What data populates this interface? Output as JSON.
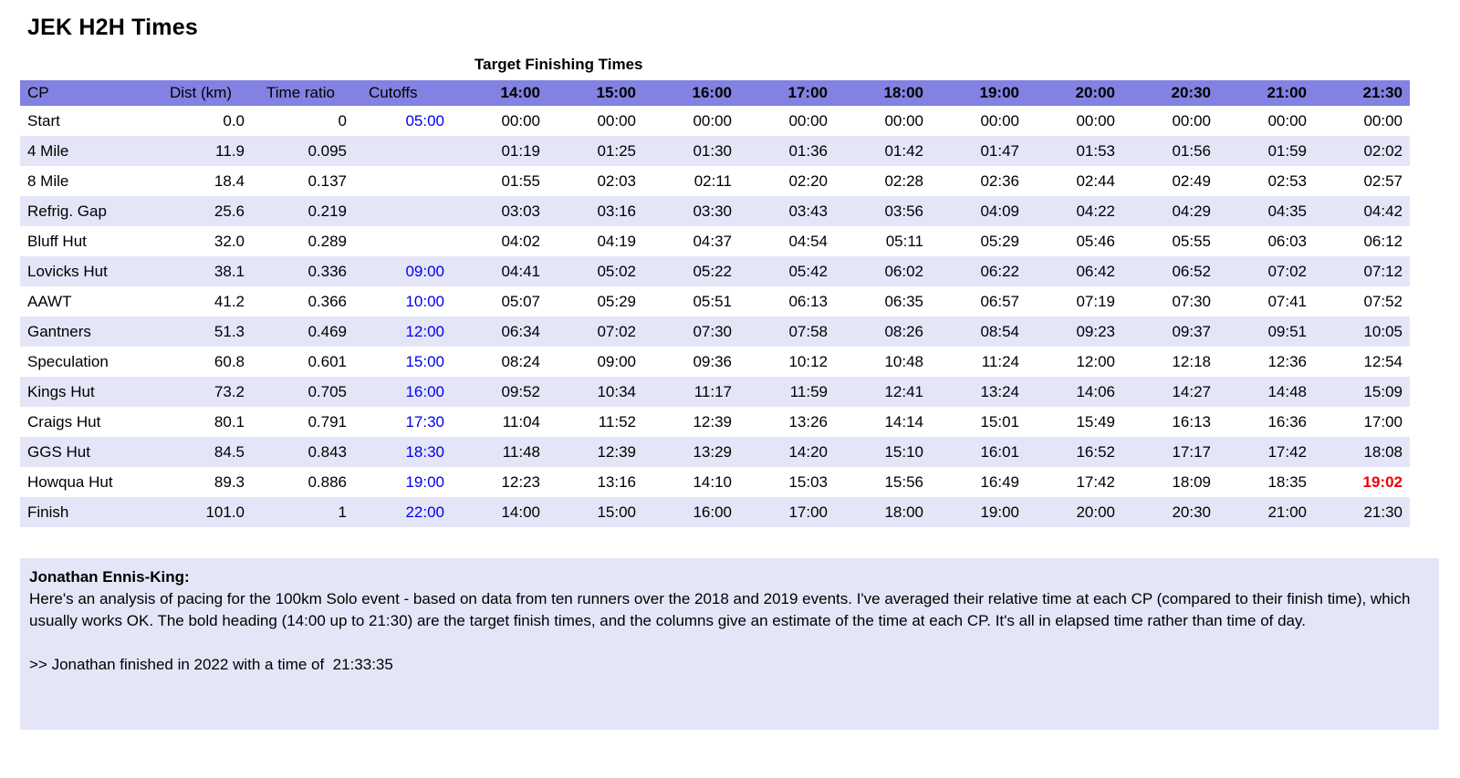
{
  "page": {
    "title": "JEK H2H Times",
    "table_caption": "Target Finishing Times"
  },
  "colors": {
    "header_bg": "#8282e2",
    "stripe": "#e5e5f8",
    "cutoff_blue": "#0000ee",
    "alert_red": "#ee0000"
  },
  "table": {
    "meta_headers": [
      "CP",
      "Dist (km)",
      "Time ratio",
      "Cutoffs"
    ],
    "time_headers": [
      "14:00",
      "15:00",
      "16:00",
      "17:00",
      "18:00",
      "19:00",
      "20:00",
      "20:30",
      "21:00",
      "21:30"
    ],
    "rows": [
      {
        "cp": "Start",
        "dist": "0.0",
        "ratio": "0",
        "cutoff": "05:00",
        "times": [
          "00:00",
          "00:00",
          "00:00",
          "00:00",
          "00:00",
          "00:00",
          "00:00",
          "00:00",
          "00:00",
          "00:00"
        ]
      },
      {
        "cp": "4 Mile",
        "dist": "11.9",
        "ratio": "0.095",
        "cutoff": "",
        "times": [
          "01:19",
          "01:25",
          "01:30",
          "01:36",
          "01:42",
          "01:47",
          "01:53",
          "01:56",
          "01:59",
          "02:02"
        ]
      },
      {
        "cp": "8 Mile",
        "dist": "18.4",
        "ratio": "0.137",
        "cutoff": "",
        "times": [
          "01:55",
          "02:03",
          "02:11",
          "02:20",
          "02:28",
          "02:36",
          "02:44",
          "02:49",
          "02:53",
          "02:57"
        ]
      },
      {
        "cp": "Refrig. Gap",
        "dist": "25.6",
        "ratio": "0.219",
        "cutoff": "",
        "times": [
          "03:03",
          "03:16",
          "03:30",
          "03:43",
          "03:56",
          "04:09",
          "04:22",
          "04:29",
          "04:35",
          "04:42"
        ]
      },
      {
        "cp": "Bluff Hut",
        "dist": "32.0",
        "ratio": "0.289",
        "cutoff": "",
        "times": [
          "04:02",
          "04:19",
          "04:37",
          "04:54",
          "05:11",
          "05:29",
          "05:46",
          "05:55",
          "06:03",
          "06:12"
        ]
      },
      {
        "cp": "Lovicks Hut",
        "dist": "38.1",
        "ratio": "0.336",
        "cutoff": "09:00",
        "times": [
          "04:41",
          "05:02",
          "05:22",
          "05:42",
          "06:02",
          "06:22",
          "06:42",
          "06:52",
          "07:02",
          "07:12"
        ]
      },
      {
        "cp": "AAWT",
        "dist": "41.2",
        "ratio": "0.366",
        "cutoff": "10:00",
        "times": [
          "05:07",
          "05:29",
          "05:51",
          "06:13",
          "06:35",
          "06:57",
          "07:19",
          "07:30",
          "07:41",
          "07:52"
        ]
      },
      {
        "cp": "Gantners",
        "dist": "51.3",
        "ratio": "0.469",
        "cutoff": "12:00",
        "times": [
          "06:34",
          "07:02",
          "07:30",
          "07:58",
          "08:26",
          "08:54",
          "09:23",
          "09:37",
          "09:51",
          "10:05"
        ]
      },
      {
        "cp": "Speculation",
        "dist": "60.8",
        "ratio": "0.601",
        "cutoff": "15:00",
        "times": [
          "08:24",
          "09:00",
          "09:36",
          "10:12",
          "10:48",
          "11:24",
          "12:00",
          "12:18",
          "12:36",
          "12:54"
        ]
      },
      {
        "cp": "Kings Hut",
        "dist": "73.2",
        "ratio": "0.705",
        "cutoff": "16:00",
        "times": [
          "09:52",
          "10:34",
          "11:17",
          "11:59",
          "12:41",
          "13:24",
          "14:06",
          "14:27",
          "14:48",
          "15:09"
        ]
      },
      {
        "cp": "Craigs Hut",
        "dist": "80.1",
        "ratio": "0.791",
        "cutoff": "17:30",
        "times": [
          "11:04",
          "11:52",
          "12:39",
          "13:26",
          "14:14",
          "15:01",
          "15:49",
          "16:13",
          "16:36",
          "17:00"
        ]
      },
      {
        "cp": "GGS Hut",
        "dist": "84.5",
        "ratio": "0.843",
        "cutoff": "18:30",
        "times": [
          "11:48",
          "12:39",
          "13:29",
          "14:20",
          "15:10",
          "16:01",
          "16:52",
          "17:17",
          "17:42",
          "18:08"
        ]
      },
      {
        "cp": "Howqua Hut",
        "dist": "89.3",
        "ratio": "0.886",
        "cutoff": "19:00",
        "times": [
          "12:23",
          "13:16",
          "14:10",
          "15:03",
          "15:56",
          "16:49",
          "17:42",
          "18:09",
          "18:35",
          "19:02"
        ],
        "highlight": {
          "col": 9
        }
      },
      {
        "cp": "Finish",
        "dist": "101.0",
        "ratio": "1",
        "cutoff": "22:00",
        "times": [
          "14:00",
          "15:00",
          "16:00",
          "17:00",
          "18:00",
          "19:00",
          "20:00",
          "20:30",
          "21:00",
          "21:30"
        ]
      }
    ]
  },
  "note": {
    "author": "Jonathan Ennis-King:",
    "body": "Here's an analysis of pacing for the 100km Solo event - based on data from ten runners over the 2018 and 2019 events. I've averaged their relative time at each CP (compared to their finish time), which usually works OK. The bold heading (14:00 up to 21:30) are the target finish times, and the columns give an estimate of the time at each CP. It's all in elapsed time rather than time of day.",
    "footer": ">> Jonathan finished in 2022 with a time of  21:33:35"
  }
}
